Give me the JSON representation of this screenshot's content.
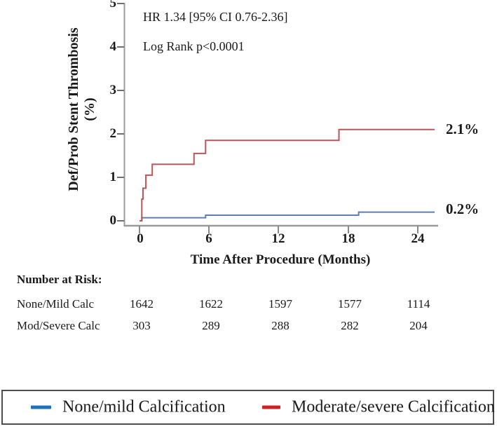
{
  "annotations": {
    "hr": "HR 1.34 [95% CI 0.76-2.36]",
    "logrank": "Log Rank p<0.0001"
  },
  "chart_data": {
    "type": "line",
    "step": true,
    "xlabel": "Time After Procedure (Months)",
    "ylabel_line1": "Def/Prob Stent Thrombosis",
    "ylabel_line2": "(%)",
    "xlim": [
      0,
      24
    ],
    "ylim": [
      0,
      5
    ],
    "xticks": [
      "0",
      "6",
      "12",
      "18",
      "24"
    ],
    "yticks": [
      "0",
      "1",
      "2",
      "3",
      "4",
      "5"
    ],
    "grid": "off",
    "legend_position": "bottom-box",
    "series": [
      {
        "name": "None/mild Calcification",
        "color": "#5f7db5",
        "end_label": "0.2%",
        "points": [
          [
            0,
            0
          ],
          [
            0.2,
            0.07
          ],
          [
            5.7,
            0.13
          ],
          [
            18.9,
            0.2
          ],
          [
            24,
            0.2
          ]
        ]
      },
      {
        "name": "Moderate/severe Calcification",
        "color": "#bf5456",
        "end_label": "2.1%",
        "points": [
          [
            0,
            0
          ],
          [
            0.2,
            0.5
          ],
          [
            0.3,
            0.75
          ],
          [
            0.55,
            1.05
          ],
          [
            1.1,
            1.3
          ],
          [
            4.7,
            1.55
          ],
          [
            5.7,
            1.85
          ],
          [
            17.2,
            2.1
          ],
          [
            24,
            2.1
          ]
        ]
      }
    ]
  },
  "risk_table": {
    "title": "Number at Risk:",
    "rows": [
      {
        "label": "None/Mild Calc",
        "values": [
          "1642",
          "1622",
          "1597",
          "1577",
          "1114"
        ]
      },
      {
        "label": "Mod/Severe Calc",
        "values": [
          "303",
          "289",
          "288",
          "282",
          "204"
        ]
      }
    ]
  },
  "legend": {
    "items": [
      {
        "label": "None/mild Calcification",
        "color": "#1e73b8"
      },
      {
        "label": "Moderate/severe Calcification",
        "color": "#cb2127"
      }
    ]
  },
  "colors": {
    "axis": "#9a9a9a",
    "tick": "#7a7a7a",
    "text": "#1a1a1a",
    "legend_border": "#4d4d4d"
  }
}
